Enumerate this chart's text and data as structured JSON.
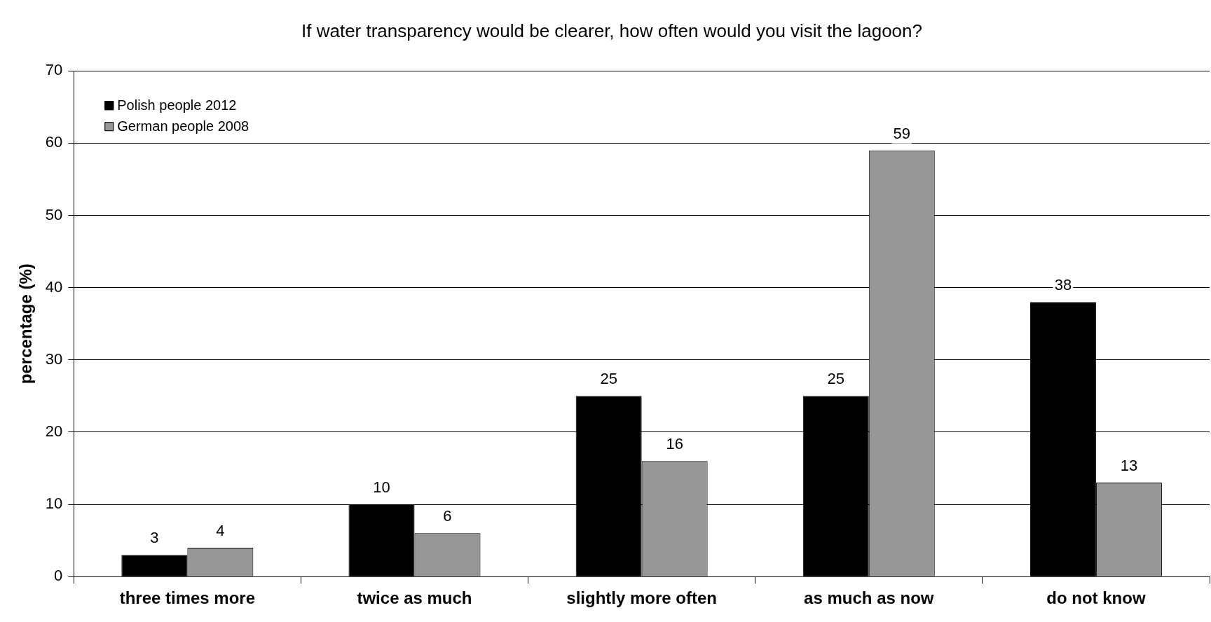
{
  "chart_data": {
    "type": "bar",
    "title": "If water transparency would be clearer, how often would you visit the lagoon?",
    "ylabel": "percentage (%)",
    "categories": [
      "three times more",
      "twice as much",
      "slightly more often",
      "as much as now",
      "do not know"
    ],
    "series": [
      {
        "name": "Polish people 2012",
        "color": "#000000",
        "values": [
          3,
          10,
          25,
          25,
          38
        ]
      },
      {
        "name": "German people 2008",
        "color": "#969696",
        "values": [
          4,
          6,
          16,
          59,
          13
        ]
      }
    ],
    "ylim": [
      0,
      70
    ],
    "yticks": [
      0,
      10,
      20,
      30,
      40,
      50,
      60,
      70
    ],
    "grid": "y",
    "legend": "top left",
    "data_labels": true
  }
}
